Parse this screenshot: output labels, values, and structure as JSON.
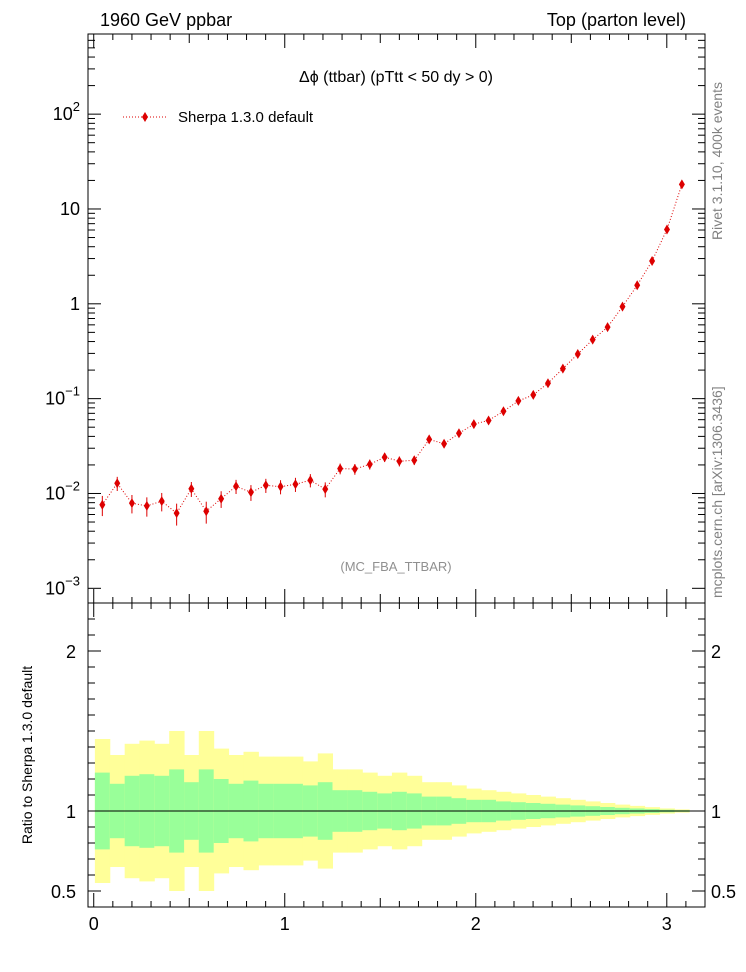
{
  "header": {
    "left": "1960 GeV ppbar",
    "right": "Top (parton level)"
  },
  "side_labels": {
    "rivet": "Rivet 3.1.10,  400k events",
    "mcplots": "mcplots.cern.ch [arXiv:1306.3436]"
  },
  "colors": {
    "mc": "#dd0000",
    "band_inner": "#99ff99",
    "band_outer": "#ffff99",
    "watermark": "#909090"
  },
  "chart_data": [
    {
      "type": "scatter",
      "title": "Δϕ (ttbar) (pTtt < 50 dy > 0)",
      "watermark": "(MC_FBA_TTBAR)",
      "legend": {
        "label": "Sherpa 1.3.0 default",
        "placement": "top-left"
      },
      "yscale": "log",
      "xlim": [
        -0.03,
        3.2
      ],
      "ylim": [
        0.0007,
        700
      ],
      "ytick_labels": [
        "10^-3",
        "10^-2",
        "10^-1",
        "1",
        "10",
        "10^2"
      ],
      "series": [
        {
          "name": "Sherpa 1.3.0 default",
          "x": [
            0.045,
            0.123,
            0.2,
            0.278,
            0.356,
            0.434,
            0.511,
            0.589,
            0.667,
            0.745,
            0.823,
            0.901,
            0.978,
            1.056,
            1.134,
            1.212,
            1.29,
            1.367,
            1.445,
            1.523,
            1.6,
            1.678,
            1.756,
            1.834,
            1.912,
            1.99,
            2.067,
            2.145,
            2.223,
            2.301,
            2.378,
            2.456,
            2.534,
            2.612,
            2.69,
            2.768,
            2.845,
            2.923,
            3.001,
            3.079
          ],
          "y": [
            0.0076,
            0.0128,
            0.0079,
            0.0074,
            0.0083,
            0.0062,
            0.0112,
            0.0065,
            0.0088,
            0.0119,
            0.0103,
            0.0122,
            0.0118,
            0.0125,
            0.0138,
            0.0111,
            0.0183,
            0.0181,
            0.0203,
            0.0241,
            0.0219,
            0.0224,
            0.0372,
            0.0334,
            0.0431,
            0.0539,
            0.0589,
            0.0736,
            0.0946,
            0.1096,
            0.1454,
            0.2074,
            0.2957,
            0.4187,
            0.5679,
            0.9341,
            1.5673,
            2.8311,
            6.0838,
            18.165
          ],
          "y_err_rel": [
            0.24,
            0.17,
            0.22,
            0.23,
            0.22,
            0.26,
            0.18,
            0.26,
            0.2,
            0.17,
            0.19,
            0.17,
            0.17,
            0.17,
            0.16,
            0.18,
            0.13,
            0.13,
            0.12,
            0.11,
            0.12,
            0.11,
            0.09,
            0.09,
            0.08,
            0.07,
            0.07,
            0.06,
            0.055,
            0.05,
            0.045,
            0.04,
            0.035,
            0.03,
            0.025,
            0.02,
            0.016,
            0.012,
            0.008,
            0.005
          ]
        }
      ]
    },
    {
      "type": "area",
      "ylabel": "Ratio to Sherpa 1.3.0 default",
      "xlabel": "",
      "xlim": [
        -0.03,
        3.2
      ],
      "ylim": [
        0.4,
        2.3
      ],
      "x_ticks": [
        0,
        1,
        2,
        3
      ],
      "y_ticks": [
        0.5,
        1,
        2
      ],
      "reference_line": 1,
      "band_edges": [
        0.006,
        0.084,
        0.162,
        0.239,
        0.317,
        0.395,
        0.473,
        0.55,
        0.628,
        0.706,
        0.784,
        0.862,
        0.939,
        1.017,
        1.095,
        1.173,
        1.25,
        1.328,
        1.406,
        1.484,
        1.561,
        1.639,
        1.717,
        1.795,
        1.873,
        1.95,
        2.028,
        2.106,
        2.184,
        2.262,
        2.339,
        2.417,
        2.495,
        2.573,
        2.651,
        2.728,
        2.806,
        2.884,
        2.962,
        3.04,
        3.117
      ],
      "inner_band": [
        0.24,
        0.17,
        0.22,
        0.23,
        0.22,
        0.26,
        0.18,
        0.26,
        0.2,
        0.17,
        0.19,
        0.17,
        0.17,
        0.17,
        0.16,
        0.18,
        0.13,
        0.13,
        0.12,
        0.11,
        0.12,
        0.11,
        0.09,
        0.09,
        0.08,
        0.07,
        0.07,
        0.06,
        0.055,
        0.05,
        0.045,
        0.04,
        0.035,
        0.03,
        0.025,
        0.02,
        0.016,
        0.012,
        0.008,
        0.005
      ],
      "outer_band": [
        0.45,
        0.35,
        0.42,
        0.44,
        0.42,
        0.5,
        0.35,
        0.5,
        0.39,
        0.35,
        0.37,
        0.34,
        0.34,
        0.34,
        0.31,
        0.36,
        0.26,
        0.26,
        0.24,
        0.22,
        0.24,
        0.22,
        0.18,
        0.18,
        0.16,
        0.14,
        0.13,
        0.12,
        0.11,
        0.1,
        0.09,
        0.08,
        0.07,
        0.06,
        0.05,
        0.04,
        0.032,
        0.024,
        0.016,
        0.01
      ]
    }
  ]
}
